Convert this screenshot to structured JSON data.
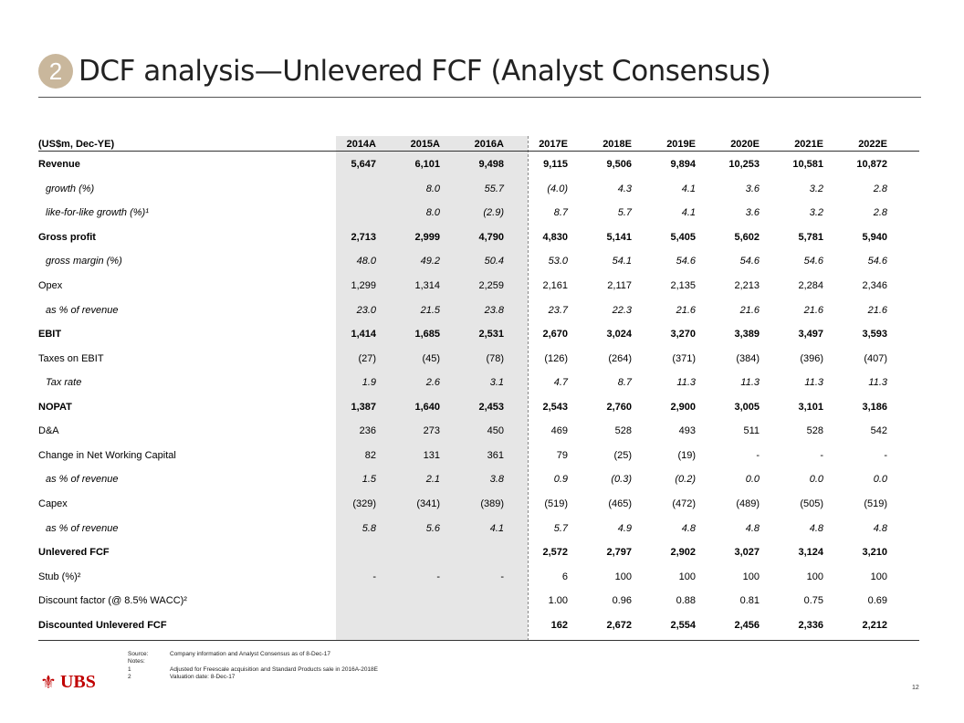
{
  "header": {
    "section_number": "2",
    "title": "DCF analysis—Unlevered FCF (Analyst Consensus)"
  },
  "table": {
    "unit_label": "(US$m, Dec-YE)",
    "columns": [
      "2014A",
      "2015A",
      "2016A",
      "2017E",
      "2018E",
      "2019E",
      "2020E",
      "2021E",
      "2022E"
    ],
    "rows": [
      {
        "label": "Revenue",
        "style": "bold",
        "values": [
          "5,647",
          "6,101",
          "9,498",
          "9,115",
          "9,506",
          "9,894",
          "10,253",
          "10,581",
          "10,872"
        ]
      },
      {
        "label": "growth (%)",
        "style": "italic",
        "values": [
          "",
          "8.0",
          "55.7",
          "(4.0)",
          "4.3",
          "4.1",
          "3.6",
          "3.2",
          "2.8"
        ]
      },
      {
        "label": "like-for-like growth (%)¹",
        "style": "italic",
        "values": [
          "",
          "8.0",
          "(2.9)",
          "8.7",
          "5.7",
          "4.1",
          "3.6",
          "3.2",
          "2.8"
        ]
      },
      {
        "label": "Gross profit",
        "style": "bold",
        "values": [
          "2,713",
          "2,999",
          "4,790",
          "4,830",
          "5,141",
          "5,405",
          "5,602",
          "5,781",
          "5,940"
        ]
      },
      {
        "label": "gross margin (%)",
        "style": "italic",
        "values": [
          "48.0",
          "49.2",
          "50.4",
          "53.0",
          "54.1",
          "54.6",
          "54.6",
          "54.6",
          "54.6"
        ]
      },
      {
        "label": "Opex",
        "style": "normal",
        "values": [
          "1,299",
          "1,314",
          "2,259",
          "2,161",
          "2,117",
          "2,135",
          "2,213",
          "2,284",
          "2,346"
        ]
      },
      {
        "label": "as % of revenue",
        "style": "italic",
        "values": [
          "23.0",
          "21.5",
          "23.8",
          "23.7",
          "22.3",
          "21.6",
          "21.6",
          "21.6",
          "21.6"
        ]
      },
      {
        "label": "EBIT",
        "style": "bold",
        "values": [
          "1,414",
          "1,685",
          "2,531",
          "2,670",
          "3,024",
          "3,270",
          "3,389",
          "3,497",
          "3,593"
        ]
      },
      {
        "label": "Taxes on EBIT",
        "style": "normal",
        "values": [
          "(27)",
          "(45)",
          "(78)",
          "(126)",
          "(264)",
          "(371)",
          "(384)",
          "(396)",
          "(407)"
        ]
      },
      {
        "label": "Tax rate",
        "style": "italic",
        "values": [
          "1.9",
          "2.6",
          "3.1",
          "4.7",
          "8.7",
          "11.3",
          "11.3",
          "11.3",
          "11.3"
        ]
      },
      {
        "label": "NOPAT",
        "style": "bold",
        "values": [
          "1,387",
          "1,640",
          "2,453",
          "2,543",
          "2,760",
          "2,900",
          "3,005",
          "3,101",
          "3,186"
        ]
      },
      {
        "label": "D&A",
        "style": "normal",
        "values": [
          "236",
          "273",
          "450",
          "469",
          "528",
          "493",
          "511",
          "528",
          "542"
        ]
      },
      {
        "label": "Change in Net Working Capital",
        "style": "normal",
        "values": [
          "82",
          "131",
          "361",
          "79",
          "(25)",
          "(19)",
          "-",
          "-",
          "-"
        ]
      },
      {
        "label": "as % of revenue",
        "style": "italic",
        "values": [
          "1.5",
          "2.1",
          "3.8",
          "0.9",
          "(0.3)",
          "(0.2)",
          "0.0",
          "0.0",
          "0.0"
        ]
      },
      {
        "label": "Capex",
        "style": "normal",
        "values": [
          "(329)",
          "(341)",
          "(389)",
          "(519)",
          "(465)",
          "(472)",
          "(489)",
          "(505)",
          "(519)"
        ]
      },
      {
        "label": "as % of revenue",
        "style": "italic",
        "values": [
          "5.8",
          "5.6",
          "4.1",
          "5.7",
          "4.9",
          "4.8",
          "4.8",
          "4.8",
          "4.8"
        ]
      },
      {
        "label": "Unlevered FCF",
        "style": "bold",
        "values": [
          "",
          "",
          "",
          "2,572",
          "2,797",
          "2,902",
          "3,027",
          "3,124",
          "3,210"
        ]
      },
      {
        "label": "Stub (%)²",
        "style": "normal",
        "values": [
          "-",
          "-",
          "-",
          "6",
          "100",
          "100",
          "100",
          "100",
          "100"
        ]
      },
      {
        "label": "Discount factor (@ 8.5% WACC)²",
        "style": "normal",
        "values": [
          "",
          "",
          "",
          "1.00",
          "0.96",
          "0.88",
          "0.81",
          "0.75",
          "0.69"
        ]
      },
      {
        "label": "Discounted Unlevered FCF",
        "style": "bold",
        "values": [
          "",
          "",
          "",
          "162",
          "2,672",
          "2,554",
          "2,456",
          "2,336",
          "2,212"
        ]
      }
    ]
  },
  "notes": [
    {
      "key": "Source:",
      "text": "Company information and Analyst Consensus as of 8-Dec-17"
    },
    {
      "key": "Notes:",
      "text": ""
    },
    {
      "key": "1",
      "text": "Adjusted for Freescale acquisition and Standard Products sale in 2016A-2018E"
    },
    {
      "key": "2",
      "text": "Valuation date: 8-Dec-17"
    }
  ],
  "footer": {
    "logo_text": "UBS",
    "page_number": "12"
  },
  "colors": {
    "badge": "#c9b79c",
    "logo": "#c00000",
    "historical_shade": "#e6e6e6"
  }
}
